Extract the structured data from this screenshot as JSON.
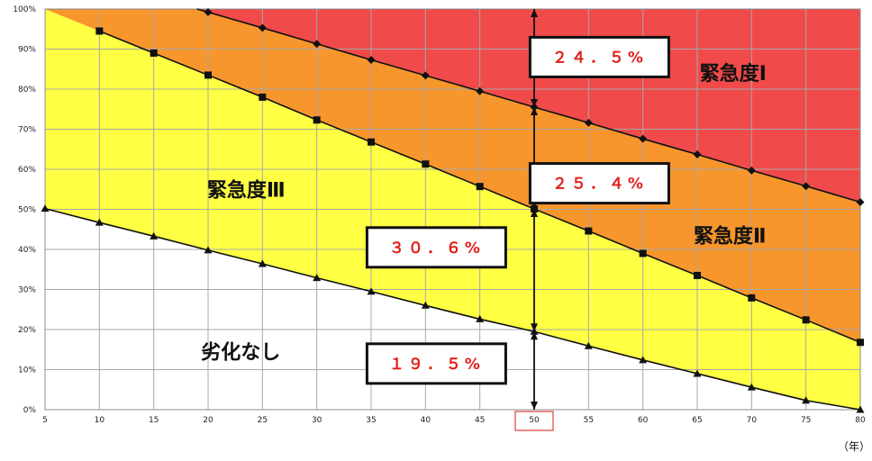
{
  "chart_data": {
    "type": "area",
    "xlabel": "",
    "x_unit": "（年）",
    "ylabel": "",
    "xlim": [
      5,
      80
    ],
    "ylim": [
      0,
      100
    ],
    "x_ticks": [
      5,
      10,
      15,
      20,
      25,
      30,
      35,
      40,
      45,
      50,
      55,
      60,
      65,
      70,
      75,
      80
    ],
    "y_ticks": [
      "0%",
      "10%",
      "20%",
      "30%",
      "40%",
      "50%",
      "60%",
      "70%",
      "80%",
      "90%",
      "100%"
    ],
    "highlighted_x": 50,
    "grid": true,
    "series": [
      {
        "marker": "triangle",
        "x": [
          5,
          10,
          15,
          20,
          25,
          30,
          35,
          40,
          45,
          50,
          55,
          60,
          65,
          70,
          75,
          80
        ],
        "values": [
          50.2,
          46.7,
          43.3,
          39.8,
          36.4,
          32.9,
          29.5,
          26.0,
          22.6,
          19.5,
          15.9,
          12.4,
          9.0,
          5.6,
          2.3,
          0
        ]
      },
      {
        "marker": "square",
        "x": [
          10,
          15,
          20,
          25,
          30,
          35,
          40,
          45,
          50,
          55,
          60,
          65,
          70,
          75,
          80
        ],
        "values": [
          94.5,
          89.0,
          83.5,
          78.0,
          72.3,
          66.8,
          61.3,
          55.7,
          50.1,
          44.6,
          39.0,
          33.5,
          27.9,
          22.4,
          16.8
        ]
      },
      {
        "marker": "diamond",
        "x": [
          20,
          25,
          30,
          35,
          40,
          45,
          50,
          55,
          60,
          65,
          70,
          75,
          80
        ],
        "values": [
          99.2,
          95.3,
          91.3,
          87.3,
          83.4,
          79.5,
          75.5,
          71.6,
          67.6,
          63.7,
          59.7,
          55.8,
          51.8
        ]
      }
    ],
    "region_colors": {
      "none": "#ffffff",
      "level3": "#ffff44",
      "level2": "#f7962c",
      "level1": "#f04a4a"
    },
    "region_labels": [
      {
        "text": "緊急度Ⅰ",
        "x": 68.3,
        "y": 84
      },
      {
        "text": "緊急度Ⅱ",
        "x": 68.0,
        "y": 43.5
      },
      {
        "text": "緊急度Ⅲ",
        "x": 23.5,
        "y": 55
      },
      {
        "text": "劣化なし",
        "x": 23.0,
        "y": 14.5
      }
    ],
    "annotations": [
      {
        "text": "２４．５%",
        "x": 56,
        "y": 88
      },
      {
        "text": "２５．４%",
        "x": 56,
        "y": 56.5
      },
      {
        "text": "３０．６%",
        "x": 41,
        "y": 40.5
      },
      {
        "text": "１９．５%",
        "x": 41,
        "y": 11.5
      }
    ],
    "arrow_x": 50,
    "arrow_points": [
      100,
      75.5,
      50.1,
      19.5,
      0
    ]
  }
}
